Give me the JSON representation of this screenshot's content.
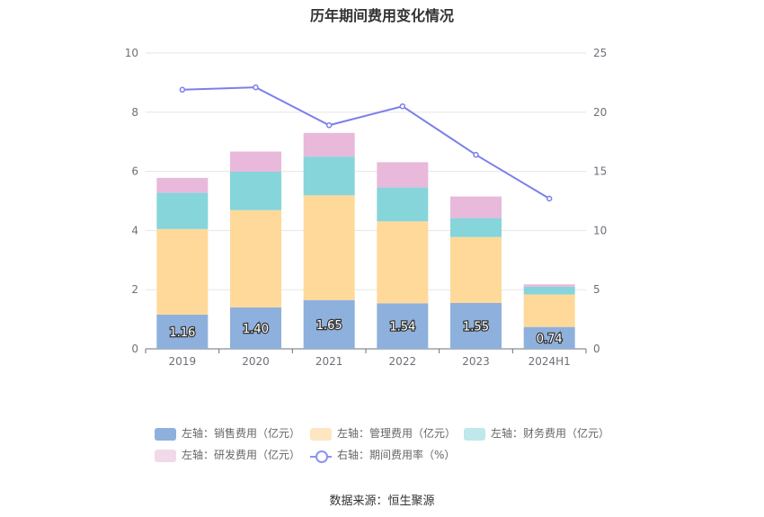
{
  "chart_data": {
    "type": "bar",
    "title": "历年期间费用变化情况",
    "categories": [
      "2019",
      "2020",
      "2021",
      "2022",
      "2023",
      "2024H1"
    ],
    "left_axis": {
      "min": 0,
      "max": 10,
      "ticks": [
        "0",
        "2",
        "4",
        "6",
        "8",
        "10"
      ]
    },
    "right_axis": {
      "min": 0,
      "max": 25,
      "ticks": [
        "0",
        "5",
        "10",
        "15",
        "20",
        "25"
      ]
    },
    "series": [
      {
        "name": "左轴：销售费用（亿元）",
        "axis": "left",
        "stack": "a",
        "color": "#8eb0dc",
        "values": [
          1.16,
          1.4,
          1.65,
          1.54,
          1.55,
          0.74
        ],
        "labels": [
          "1.16",
          "1.40",
          "1.65",
          "1.54",
          "1.55",
          "0.74"
        ]
      },
      {
        "name": "左轴：管理费用（亿元）",
        "axis": "left",
        "stack": "a",
        "color": "#ffd99a",
        "values": [
          2.89,
          3.29,
          3.54,
          2.77,
          2.23,
          1.1
        ]
      },
      {
        "name": "左轴：财务费用（亿元）",
        "axis": "left",
        "stack": "a",
        "color": "#86d5db",
        "values": [
          1.23,
          1.3,
          1.31,
          1.15,
          0.64,
          0.26
        ]
      },
      {
        "name": "左轴：研发费用（亿元）",
        "axis": "left",
        "stack": "a",
        "color": "#e8b9da",
        "values": [
          0.5,
          0.68,
          0.8,
          0.85,
          0.73,
          0.08
        ]
      },
      {
        "name": "右轴：期间费用率（%）",
        "axis": "right",
        "type": "line",
        "color": "#7b80ea",
        "values": [
          21.9,
          22.1,
          18.9,
          20.5,
          16.4,
          12.7
        ]
      }
    ],
    "legend_position": "bottom"
  },
  "legend_colors": {
    "sales": "#8eb0dc",
    "admin": "#fde6c0",
    "finance": "#bfe8ea",
    "rd": "#f1d9ea"
  },
  "source": "数据来源：恒生聚源"
}
